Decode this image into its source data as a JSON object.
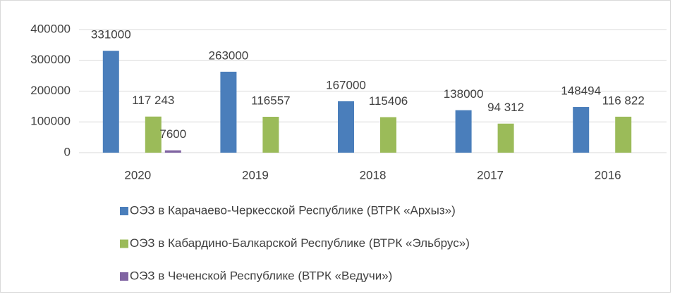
{
  "chart_data": {
    "type": "bar",
    "categories": [
      "2020",
      "2019",
      "2018",
      "2017",
      "2016"
    ],
    "series": [
      {
        "name": "ОЭЗ в Карачаево-Черкесской Республике (ВТРК «Архыз»)",
        "color": "#4a7ebb",
        "values": [
          331000,
          263000,
          167000,
          138000,
          148494
        ]
      },
      {
        "name": "ОЭЗ в Кабардино-Балкарской Республике (ВТРК «Эльбрус»)",
        "color": "#9bbb59",
        "values": [
          117243,
          116557,
          115406,
          94312,
          116822
        ],
        "value_labels": [
          "117 243",
          "116557",
          "115406",
          "94 312",
          "116 822"
        ]
      },
      {
        "name": "ОЭЗ в Чеченской Республике (ВТРК «Ведучи»)",
        "color": "#8064a2",
        "values": [
          7600,
          null,
          null,
          null,
          null
        ]
      }
    ],
    "ylim": [
      0,
      400000
    ],
    "yticks": [
      0,
      100000,
      200000,
      300000,
      400000
    ],
    "grid": true,
    "legend": "bottom"
  }
}
